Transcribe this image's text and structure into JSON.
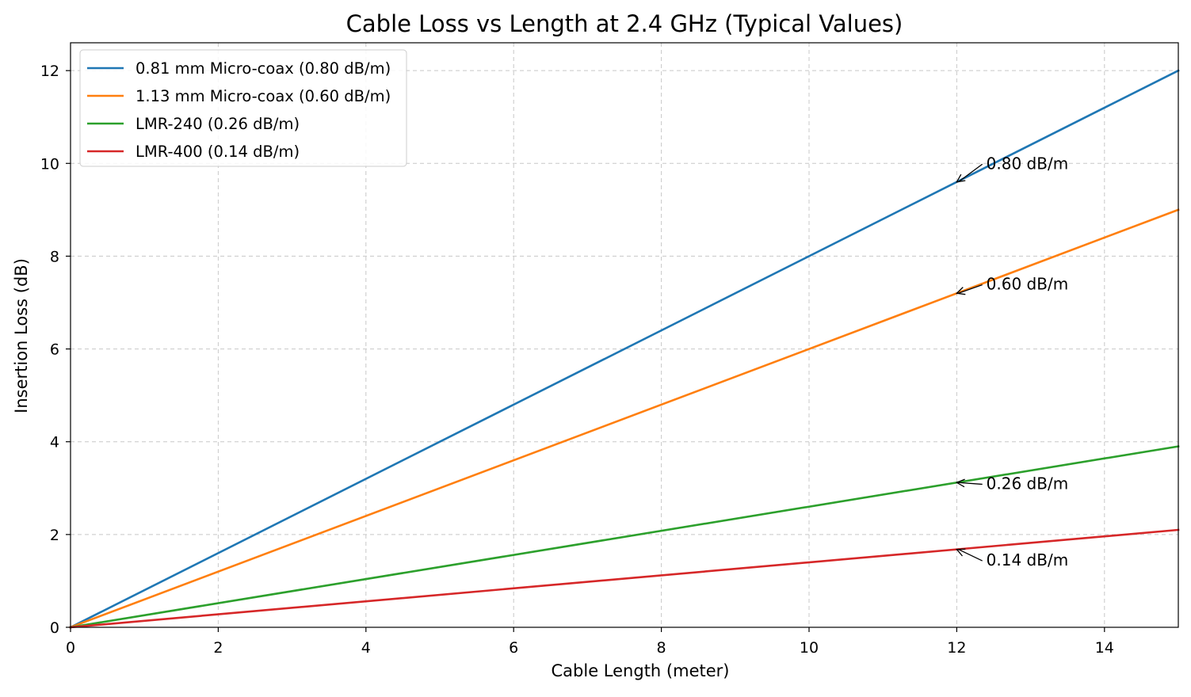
{
  "chart_data": {
    "type": "line",
    "title": "Cable Loss vs Length at 2.4 GHz (Typical Values)",
    "xlabel": "Cable Length (meter)",
    "ylabel": "Insertion Loss (dB)",
    "xlim": [
      0,
      15
    ],
    "ylim": [
      0,
      12.6
    ],
    "xticks": [
      0,
      2,
      4,
      6,
      8,
      10,
      12,
      14
    ],
    "yticks": [
      0,
      2,
      4,
      6,
      8,
      10,
      12
    ],
    "grid": true,
    "grid_style": "dashed",
    "legend_position": "upper-left",
    "series": [
      {
        "name": "0.81 mm Micro-coax (0.80 dB/m)",
        "slope": 0.8,
        "x": [
          0,
          15
        ],
        "values": [
          0,
          12.0
        ],
        "color": "#1f77b4"
      },
      {
        "name": "1.13 mm Micro-coax (0.60 dB/m)",
        "slope": 0.6,
        "x": [
          0,
          15
        ],
        "values": [
          0,
          9.0
        ],
        "color": "#ff7f0e"
      },
      {
        "name": "LMR-240 (0.26 dB/m)",
        "slope": 0.26,
        "x": [
          0,
          15
        ],
        "values": [
          0,
          3.9
        ],
        "color": "#2ca02c"
      },
      {
        "name": "LMR-400 (0.14 dB/m)",
        "slope": 0.14,
        "x": [
          0,
          15
        ],
        "values": [
          0,
          2.1
        ],
        "color": "#d62728"
      }
    ],
    "annotations": [
      {
        "text": "0.80 dB/m",
        "x": 12,
        "y": 9.6,
        "text_x": 12.4,
        "text_y": 10.0
      },
      {
        "text": "0.60 dB/m",
        "x": 12,
        "y": 7.2,
        "text_x": 12.4,
        "text_y": 7.4
      },
      {
        "text": "0.26 dB/m",
        "x": 12,
        "y": 3.12,
        "text_x": 12.4,
        "text_y": 3.1
      },
      {
        "text": "0.14 dB/m",
        "x": 12,
        "y": 1.68,
        "text_x": 12.4,
        "text_y": 1.45
      }
    ]
  }
}
